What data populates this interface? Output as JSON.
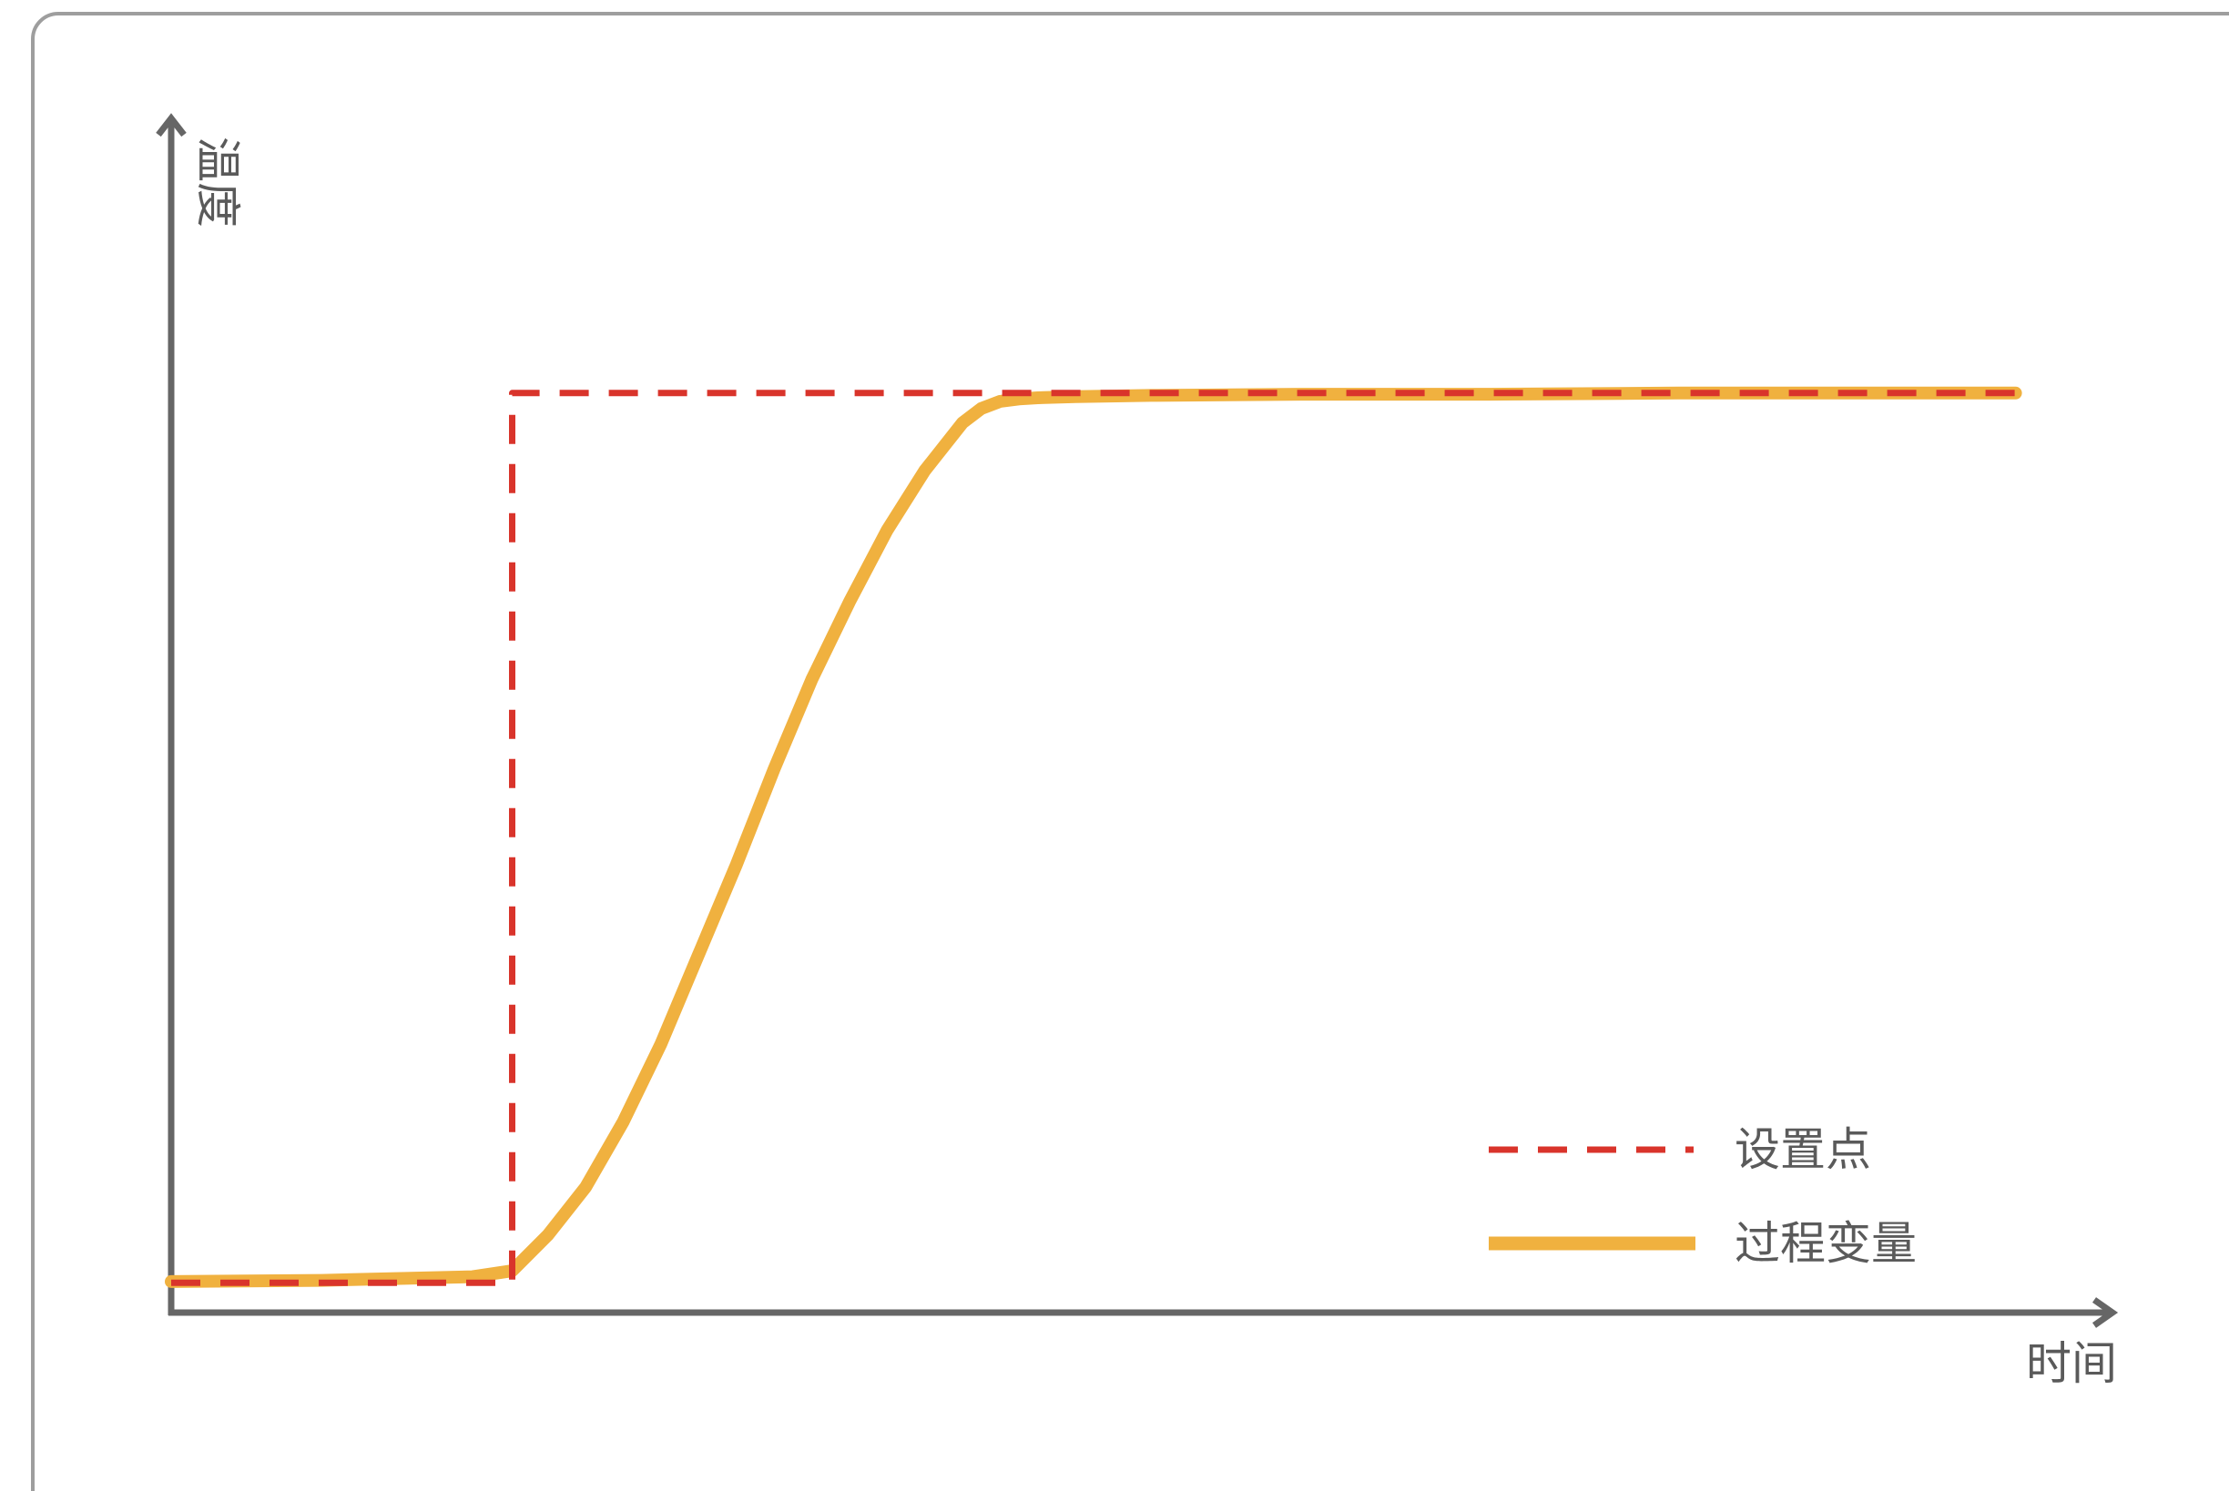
{
  "chart_data": {
    "type": "line",
    "title": "",
    "xlabel": "时间",
    "ylabel": "温度",
    "xlim": [
      0,
      100
    ],
    "ylim": [
      0,
      100
    ],
    "grid": false,
    "legend_position": "bottom-right",
    "colors": {
      "frame": "#9e9e9e",
      "axis": "#666666",
      "setpoint": "#d9342b",
      "process": "#f0b13f",
      "text": "#5a5a5a"
    },
    "series": [
      {
        "name": "设置点",
        "style": "dashed",
        "color": "#d9342b",
        "x": [
          0,
          18.1,
          18.1,
          97.9
        ],
        "y": [
          2.5,
          2.5,
          77.0,
          77.0
        ]
      },
      {
        "name": "过程变量",
        "style": "solid",
        "color": "#f0b13f",
        "x": [
          0,
          8,
          16,
          18.1,
          20,
          22,
          24,
          26,
          28,
          30,
          32,
          34,
          36,
          38,
          40,
          42,
          43,
          44,
          45,
          46,
          48,
          52,
          60,
          70,
          80,
          90,
          97.9
        ],
        "y": [
          2.6,
          2.7,
          3.0,
          3.5,
          6.5,
          10.5,
          16.0,
          22.5,
          30.0,
          37.5,
          45.5,
          53.0,
          59.5,
          65.5,
          70.5,
          74.5,
          75.7,
          76.3,
          76.5,
          76.6,
          76.7,
          76.8,
          76.9,
          76.9,
          77.0,
          77.0,
          77.0
        ]
      }
    ]
  }
}
